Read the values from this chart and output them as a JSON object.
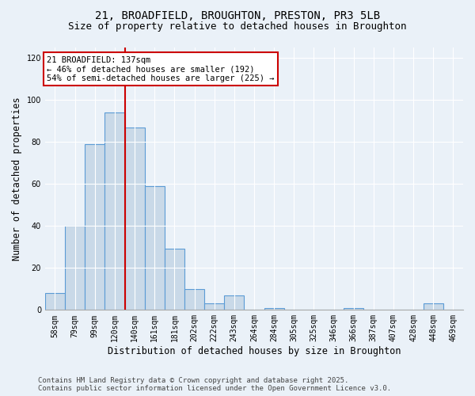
{
  "title_line1": "21, BROADFIELD, BROUGHTON, PRESTON, PR3 5LB",
  "title_line2": "Size of property relative to detached houses in Broughton",
  "xlabel": "Distribution of detached houses by size in Broughton",
  "ylabel": "Number of detached properties",
  "categories": [
    "58sqm",
    "79sqm",
    "99sqm",
    "120sqm",
    "140sqm",
    "161sqm",
    "181sqm",
    "202sqm",
    "222sqm",
    "243sqm",
    "264sqm",
    "284sqm",
    "305sqm",
    "325sqm",
    "346sqm",
    "366sqm",
    "387sqm",
    "407sqm",
    "428sqm",
    "448sqm",
    "469sqm"
  ],
  "values": [
    8,
    40,
    79,
    94,
    87,
    59,
    29,
    10,
    3,
    7,
    0,
    1,
    0,
    0,
    0,
    1,
    0,
    0,
    0,
    3,
    0
  ],
  "bar_color": "#c9d9e8",
  "bar_edge_color": "#5b9bd5",
  "vline_x": 3.5,
  "vline_color": "#cc0000",
  "annotation_text": "21 BROADFIELD: 137sqm\n← 46% of detached houses are smaller (192)\n54% of semi-detached houses are larger (225) →",
  "annotation_box_color": "#ffffff",
  "annotation_box_edge": "#cc0000",
  "ylim": [
    0,
    125
  ],
  "yticks": [
    0,
    20,
    40,
    60,
    80,
    100,
    120
  ],
  "footer_line1": "Contains HM Land Registry data © Crown copyright and database right 2025.",
  "footer_line2": "Contains public sector information licensed under the Open Government Licence v3.0.",
  "background_color": "#eaf1f8",
  "plot_bg_color": "#eaf1f8",
  "title_fontsize": 10,
  "subtitle_fontsize": 9,
  "tick_fontsize": 7,
  "label_fontsize": 8.5,
  "footer_fontsize": 6.5,
  "ann_fontsize": 7.5
}
